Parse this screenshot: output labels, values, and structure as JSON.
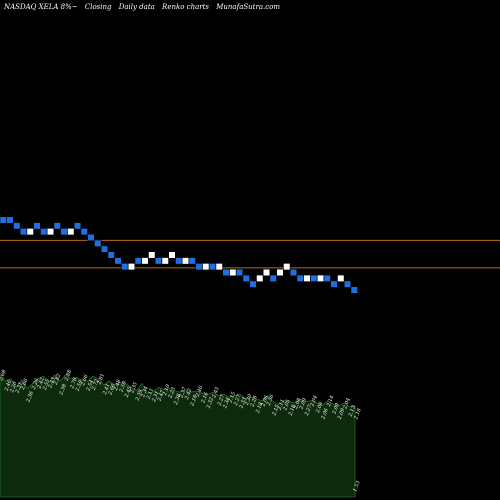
{
  "header": {
    "ticker": "NASDAQ XELA 8%~",
    "closing": "Closing",
    "period": "Daily data",
    "chart_type_label": "Renko charts",
    "site": "MunafaSutra.com"
  },
  "colors": {
    "background": "#000000",
    "up_brick": "#ffffff",
    "down_brick": "#1e6fe0",
    "line": "#b86a1a",
    "volume_fill": "#0d2a0d",
    "volume_stroke": "#2e8a2e",
    "label": "#ffffff"
  },
  "chart_data": [
    {
      "type": "renko",
      "brick_colors": {
        "up": "white",
        "down": "blue"
      },
      "bricks": [
        {
          "d": "down",
          "s": 1.0
        },
        {
          "d": "down",
          "s": 1.0
        },
        {
          "d": "down",
          "s": 0.99
        },
        {
          "d": "down",
          "s": 0.98
        },
        {
          "d": "up",
          "s": 0.98
        },
        {
          "d": "down",
          "s": 0.99
        },
        {
          "d": "down",
          "s": 0.98
        },
        {
          "d": "up",
          "s": 0.98
        },
        {
          "d": "down",
          "s": 0.99
        },
        {
          "d": "down",
          "s": 0.98
        },
        {
          "d": "up",
          "s": 0.98
        },
        {
          "d": "down",
          "s": 0.99
        },
        {
          "d": "down",
          "s": 0.98
        },
        {
          "d": "down",
          "s": 0.97
        },
        {
          "d": "down",
          "s": 0.96
        },
        {
          "d": "down",
          "s": 0.95
        },
        {
          "d": "down",
          "s": 0.94
        },
        {
          "d": "down",
          "s": 0.93
        },
        {
          "d": "down",
          "s": 0.92
        },
        {
          "d": "up",
          "s": 0.92
        },
        {
          "d": "down",
          "s": 0.93
        },
        {
          "d": "up",
          "s": 0.93
        },
        {
          "d": "up",
          "s": 0.94
        },
        {
          "d": "down",
          "s": 0.93
        },
        {
          "d": "up",
          "s": 0.93
        },
        {
          "d": "up",
          "s": 0.94
        },
        {
          "d": "down",
          "s": 0.93
        },
        {
          "d": "up",
          "s": 0.93
        },
        {
          "d": "down",
          "s": 0.93
        },
        {
          "d": "down",
          "s": 0.92
        },
        {
          "d": "up",
          "s": 0.92
        },
        {
          "d": "down",
          "s": 0.92
        },
        {
          "d": "up",
          "s": 0.92
        },
        {
          "d": "down",
          "s": 0.91
        },
        {
          "d": "up",
          "s": 0.91
        },
        {
          "d": "down",
          "s": 0.91
        },
        {
          "d": "down",
          "s": 0.9
        },
        {
          "d": "down",
          "s": 0.89
        },
        {
          "d": "up",
          "s": 0.9
        },
        {
          "d": "up",
          "s": 0.91
        },
        {
          "d": "down",
          "s": 0.9
        },
        {
          "d": "up",
          "s": 0.91
        },
        {
          "d": "up",
          "s": 0.92
        },
        {
          "d": "down",
          "s": 0.91
        },
        {
          "d": "down",
          "s": 0.9
        },
        {
          "d": "up",
          "s": 0.9
        },
        {
          "d": "down",
          "s": 0.9
        },
        {
          "d": "up",
          "s": 0.9
        },
        {
          "d": "down",
          "s": 0.9
        },
        {
          "d": "down",
          "s": 0.89
        },
        {
          "d": "up",
          "s": 0.9
        },
        {
          "d": "down",
          "s": 0.89
        },
        {
          "d": "down",
          "s": 0.88
        }
      ],
      "hlines": [
        0.965,
        0.918
      ]
    },
    {
      "type": "area",
      "series_labels": [
        "2.68",
        "2.46",
        "2.20",
        "2.31",
        "2.60",
        "2.36",
        "2.26",
        "2.42",
        "2.55",
        "2.43",
        "2.82",
        "2.38",
        "2.88",
        "2.78",
        "2.59",
        "2.66",
        "2.54",
        "2.72",
        "2.81",
        "2.41",
        "2.66",
        "2.48",
        "2.59",
        "2.45",
        "2.35",
        "2.39",
        "2.34",
        "2.11",
        "2.31",
        "2.47",
        "2.10",
        "2.23",
        "2.38",
        "2.37",
        "2.42",
        "2.18",
        "2.46",
        "2.16",
        "2.32",
        "2.45",
        "2.27",
        "2.34",
        "2.15",
        "2.27",
        "2.33",
        "2.20",
        "2.28",
        "2.18",
        "2.06",
        "2.36",
        "2.15",
        "2.11",
        "2.05",
        "2.18",
        "2.08",
        "2.09",
        "2.27",
        "2.04",
        "2.08",
        "2.06",
        "2.14",
        "2.09",
        "2.09",
        "2.04",
        "2.13",
        "2.18"
      ],
      "last_label": "1.53",
      "values": [
        1.0,
        0.95,
        0.97,
        0.9,
        0.96,
        0.89,
        0.93,
        0.97,
        0.99,
        0.94,
        1.0,
        0.95,
        1.0,
        0.97,
        0.98,
        0.96,
        0.95,
        0.99,
        0.97,
        0.92,
        0.95,
        0.92,
        0.94,
        0.93,
        0.9,
        0.87,
        0.93,
        0.85,
        0.86,
        0.9,
        0.88,
        0.89,
        0.87,
        0.86,
        0.88,
        0.86,
        0.87,
        0.85,
        0.84,
        0.86,
        0.83,
        0.84,
        0.82,
        0.83,
        0.84,
        0.8,
        0.82,
        0.8,
        0.79,
        0.83,
        0.78,
        0.76,
        0.79,
        0.78,
        0.77,
        0.8,
        0.78,
        0.79,
        0.77,
        0.75,
        0.79,
        0.76,
        0.75,
        0.77,
        0.74,
        0.75
      ]
    }
  ]
}
